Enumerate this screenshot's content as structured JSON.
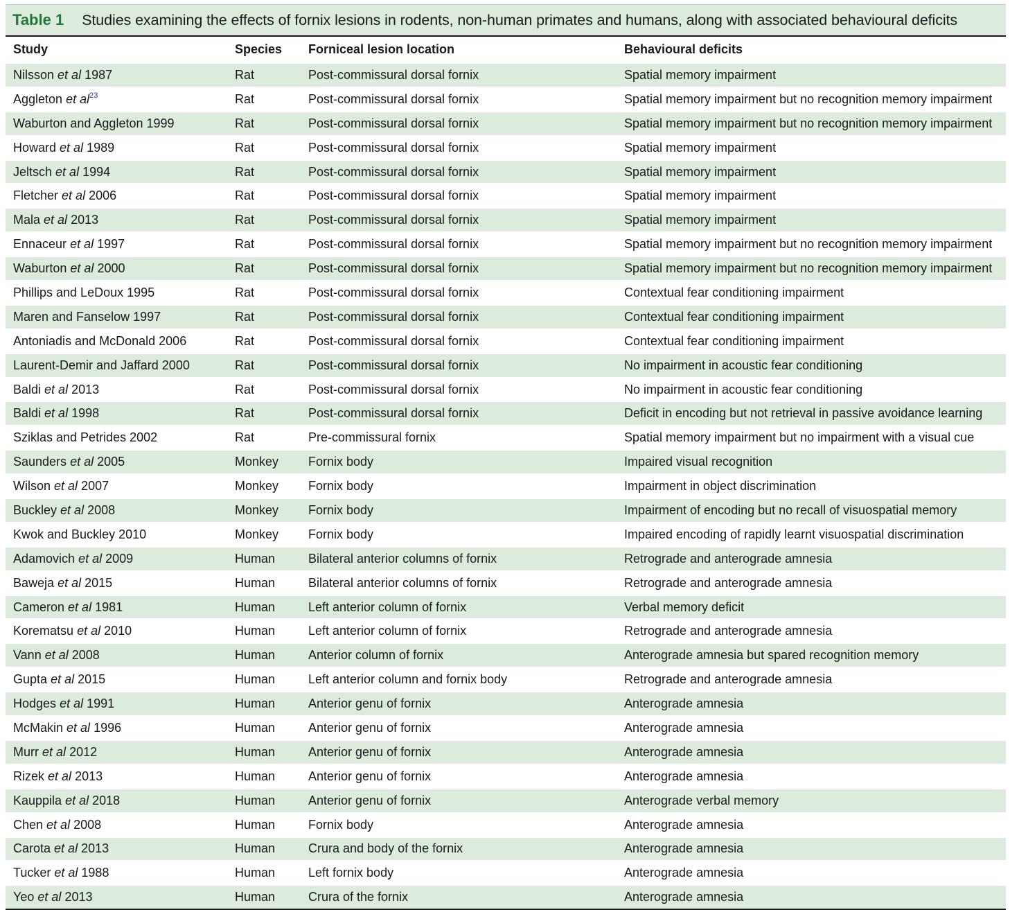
{
  "caption": {
    "label": "Table 1",
    "title": "Studies examining the effects of fornix lesions in rodents, non-human primates and humans, along with associated behavioural deficits"
  },
  "headers": [
    "Study",
    "Species",
    "Forniceal lesion location",
    "Behavioural deficits"
  ],
  "rows": [
    {
      "author": "Nilsson",
      "etal": true,
      "year": "1987",
      "sup": "",
      "species": "Rat",
      "location": "Post-commissural dorsal fornix",
      "deficit": "Spatial memory impairment"
    },
    {
      "author": "Aggleton",
      "etal": true,
      "year": "",
      "sup": "23",
      "species": "Rat",
      "location": "Post-commissural dorsal fornix",
      "deficit": "Spatial memory impairment but no recognition memory impairment"
    },
    {
      "author": "Waburton and Aggleton",
      "etal": false,
      "year": "1999",
      "sup": "",
      "species": "Rat",
      "location": "Post-commissural dorsal fornix",
      "deficit": "Spatial memory impairment but no recognition memory impairment"
    },
    {
      "author": "Howard",
      "etal": true,
      "year": "1989",
      "sup": "",
      "species": "Rat",
      "location": "Post-commissural dorsal fornix",
      "deficit": "Spatial memory impairment"
    },
    {
      "author": "Jeltsch",
      "etal": true,
      "year": "1994",
      "sup": "",
      "species": "Rat",
      "location": "Post-commissural dorsal fornix",
      "deficit": "Spatial memory impairment"
    },
    {
      "author": "Fletcher",
      "etal": true,
      "year": "2006",
      "sup": "",
      "species": "Rat",
      "location": "Post-commissural dorsal fornix",
      "deficit": "Spatial memory impairment"
    },
    {
      "author": "Mala",
      "etal": true,
      "year": "2013",
      "sup": "",
      "species": "Rat",
      "location": "Post-commissural dorsal fornix",
      "deficit": "Spatial memory impairment"
    },
    {
      "author": "Ennaceur",
      "etal": true,
      "year": "1997",
      "sup": "",
      "species": "Rat",
      "location": "Post-commissural dorsal fornix",
      "deficit": "Spatial memory impairment but no recognition memory impairment"
    },
    {
      "author": "Waburton",
      "etal": true,
      "year": "2000",
      "sup": "",
      "species": "Rat",
      "location": "Post-commissural dorsal fornix",
      "deficit": "Spatial memory impairment but no recognition memory impairment"
    },
    {
      "author": "Phillips and LeDoux",
      "etal": false,
      "year": "1995",
      "sup": "",
      "species": "Rat",
      "location": "Post-commissural dorsal fornix",
      "deficit": "Contextual fear conditioning impairment"
    },
    {
      "author": "Maren and Fanselow",
      "etal": false,
      "year": "1997",
      "sup": "",
      "species": "Rat",
      "location": "Post-commissural dorsal fornix",
      "deficit": "Contextual fear conditioning impairment"
    },
    {
      "author": "Antoniadis and McDonald",
      "etal": false,
      "year": "2006",
      "sup": "",
      "species": "Rat",
      "location": "Post-commissural dorsal fornix",
      "deficit": "Contextual fear conditioning impairment"
    },
    {
      "author": "Laurent-Demir and Jaffard",
      "etal": false,
      "year": "2000",
      "sup": "",
      "species": "Rat",
      "location": "Post-commissural dorsal fornix",
      "deficit": "No impairment in acoustic fear conditioning"
    },
    {
      "author": "Baldi",
      "etal": true,
      "year": "2013",
      "sup": "",
      "species": "Rat",
      "location": "Post-commissural dorsal fornix",
      "deficit": "No impairment in acoustic fear conditioning"
    },
    {
      "author": "Baldi",
      "etal": true,
      "year": "1998",
      "sup": "",
      "species": "Rat",
      "location": "Post-commissural dorsal fornix",
      "deficit": "Deficit in encoding but not retrieval in passive avoidance learning"
    },
    {
      "author": "Sziklas and Petrides",
      "etal": false,
      "year": "2002",
      "sup": "",
      "species": "Rat",
      "location": "Pre-commissural fornix",
      "deficit": "Spatial memory impairment but no impairment with a visual cue"
    },
    {
      "author": "Saunders",
      "etal": true,
      "year": "2005",
      "sup": "",
      "species": "Monkey",
      "location": "Fornix body",
      "deficit": "Impaired visual recognition"
    },
    {
      "author": "Wilson",
      "etal": true,
      "year": "2007",
      "sup": "",
      "species": "Monkey",
      "location": "Fornix body",
      "deficit": "Impairment in object discrimination"
    },
    {
      "author": "Buckley",
      "etal": true,
      "year": "2008",
      "sup": "",
      "species": "Monkey",
      "location": "Fornix body",
      "deficit": "Impairment of encoding but no recall of visuospatial memory"
    },
    {
      "author": "Kwok and Buckley",
      "etal": false,
      "year": "2010",
      "sup": "",
      "species": "Monkey",
      "location": "Fornix body",
      "deficit": "Impaired encoding of rapidly learnt visuospatial discrimination"
    },
    {
      "author": "Adamovich",
      "etal": true,
      "year": "2009",
      "sup": "",
      "species": "Human",
      "location": "Bilateral anterior columns of fornix",
      "deficit": "Retrograde and anterograde amnesia"
    },
    {
      "author": "Baweja",
      "etal": true,
      "year": "2015",
      "sup": "",
      "species": "Human",
      "location": "Bilateral anterior columns of fornix",
      "deficit": "Retrograde and anterograde amnesia"
    },
    {
      "author": "Cameron",
      "etal": true,
      "year": "1981",
      "sup": "",
      "species": "Human",
      "location": "Left anterior column of fornix",
      "deficit": "Verbal memory deficit"
    },
    {
      "author": "Korematsu",
      "etal": true,
      "year": "2010",
      "sup": "",
      "species": "Human",
      "location": "Left anterior column of fornix",
      "deficit": "Retrograde and anterograde amnesia"
    },
    {
      "author": "Vann",
      "etal": true,
      "year": "2008",
      "sup": "",
      "species": "Human",
      "location": "Anterior column of fornix",
      "deficit": "Anterograde amnesia but spared recognition memory"
    },
    {
      "author": "Gupta",
      "etal": true,
      "year": "2015",
      "sup": "",
      "species": "Human",
      "location": "Left anterior column and fornix body",
      "deficit": "Retrograde and anterograde amnesia"
    },
    {
      "author": "Hodges",
      "etal": true,
      "year": "1991",
      "sup": "",
      "species": "Human",
      "location": "Anterior genu of fornix",
      "deficit": "Anterograde amnesia"
    },
    {
      "author": "McMakin",
      "etal": true,
      "year": "1996",
      "sup": "",
      "species": "Human",
      "location": "Anterior genu of fornix",
      "deficit": "Anterograde amnesia"
    },
    {
      "author": "Murr",
      "etal": true,
      "year": "2012",
      "sup": "",
      "species": "Human",
      "location": "Anterior genu of fornix",
      "deficit": "Anterograde amnesia"
    },
    {
      "author": "Rizek",
      "etal": true,
      "year": "2013",
      "sup": "",
      "species": "Human",
      "location": "Anterior genu of fornix",
      "deficit": "Anterograde amnesia"
    },
    {
      "author": "Kauppila",
      "etal": true,
      "year": "2018",
      "sup": "",
      "species": "Human",
      "location": "Anterior genu of fornix",
      "deficit": "Anterograde verbal memory"
    },
    {
      "author": "Chen",
      "etal": true,
      "year": "2008",
      "sup": "",
      "species": "Human",
      "location": "Fornix body",
      "deficit": "Anterograde amnesia"
    },
    {
      "author": "Carota",
      "etal": true,
      "year": "2013",
      "sup": "",
      "species": "Human",
      "location": "Crura and body of the fornix",
      "deficit": "Anterograde amnesia"
    },
    {
      "author": "Tucker",
      "etal": true,
      "year": "1988",
      "sup": "",
      "species": "Human",
      "location": "Left fornix body",
      "deficit": "Anterograde amnesia"
    },
    {
      "author": "Yeo",
      "etal": true,
      "year": "2013",
      "sup": "",
      "species": "Human",
      "location": "Crura of the fornix",
      "deficit": "Anterograde amnesia"
    }
  ],
  "etal_text": "et al"
}
